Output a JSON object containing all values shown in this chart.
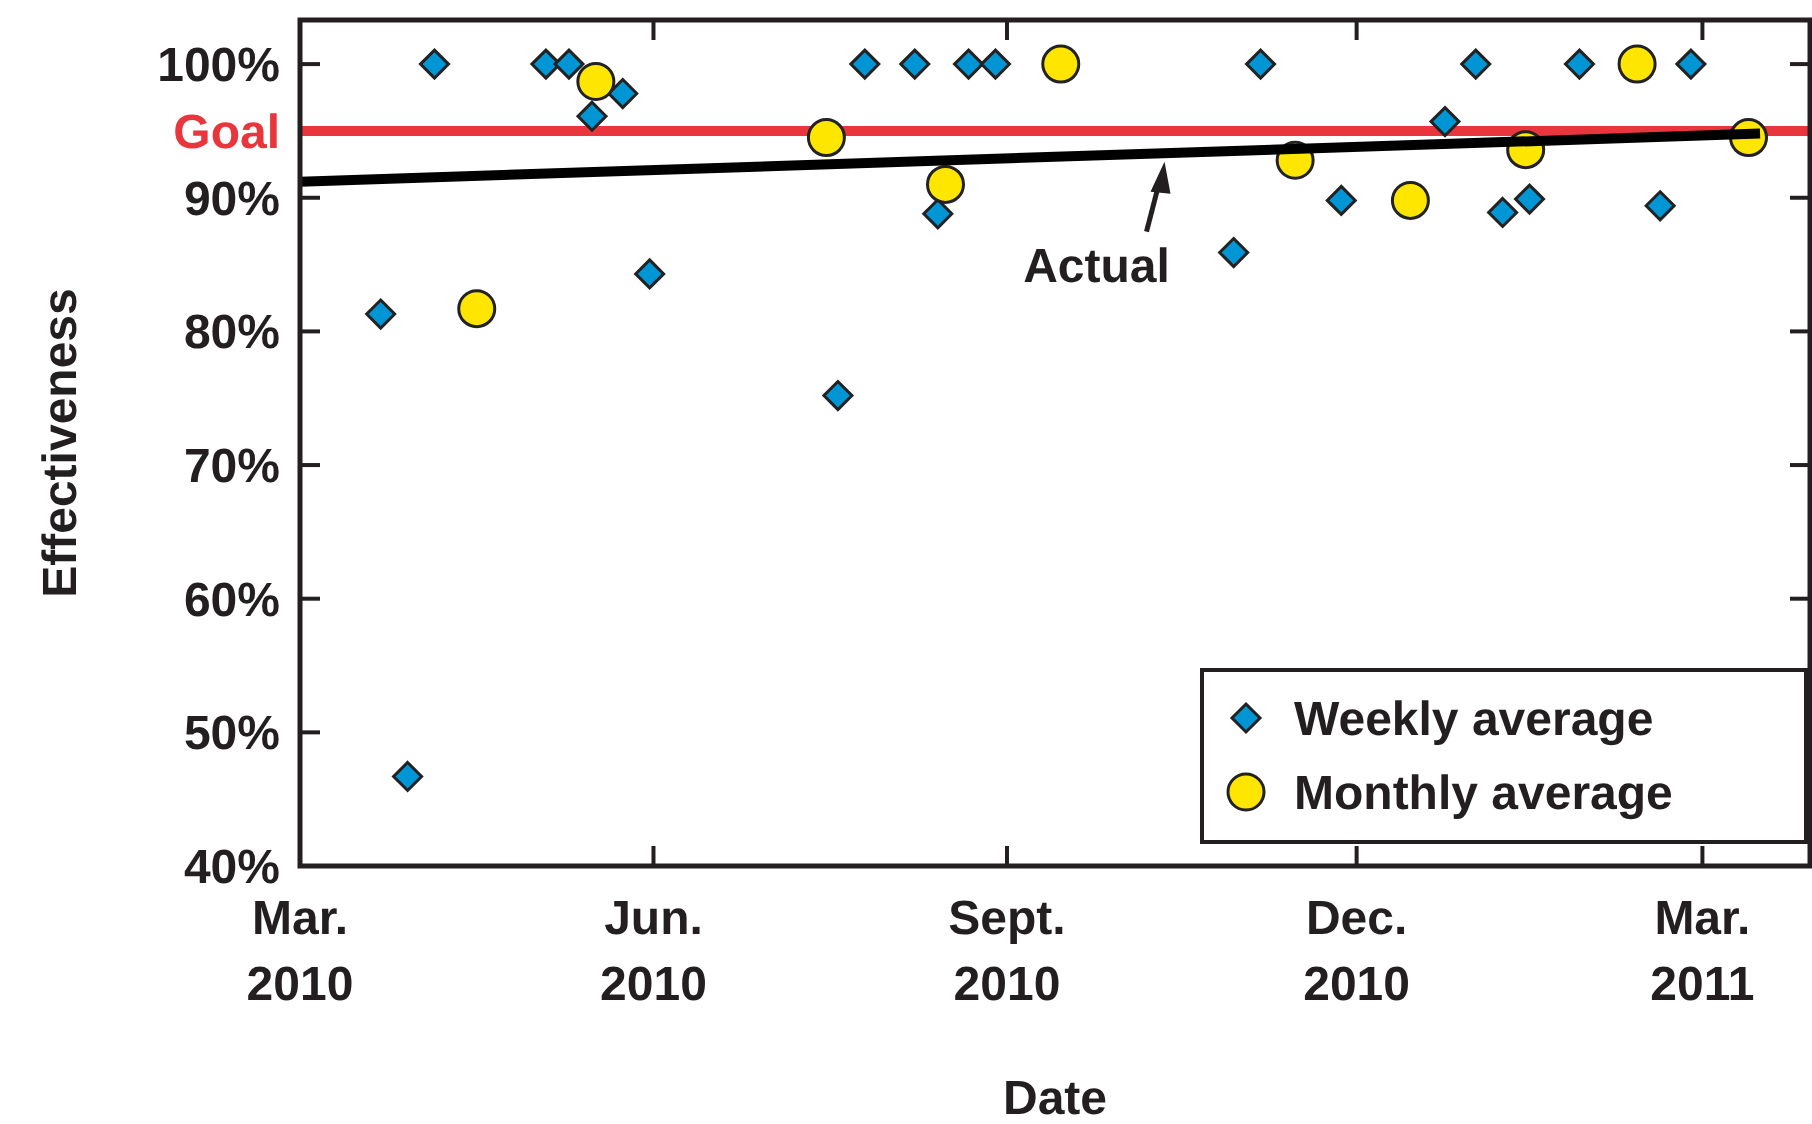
{
  "chart_data": {
    "type": "scatter",
    "xlabel": "Date",
    "ylabel": "Effectiveness",
    "xlim": [
      "2010-03-01",
      "2011-03-29"
    ],
    "ylim": [
      40,
      103.3
    ],
    "xticks": [
      {
        "value": "2010-03-01",
        "label": "Mar. 2010"
      },
      {
        "value": "2010-06-01",
        "label": "Jun. 2010"
      },
      {
        "value": "2010-09-01",
        "label": "Sept. 2010"
      },
      {
        "value": "2010-12-01",
        "label": "Dec. 2010"
      },
      {
        "value": "2011-03-01",
        "label": "Mar. 2011"
      }
    ],
    "yticks": [
      {
        "value": 40,
        "label": "40%"
      },
      {
        "value": 50,
        "label": "50%"
      },
      {
        "value": 60,
        "label": "60%"
      },
      {
        "value": 70,
        "label": "70%"
      },
      {
        "value": 80,
        "label": "80%"
      },
      {
        "value": 90,
        "label": "90%"
      },
      {
        "value": 100,
        "label": "100%"
      }
    ],
    "ref_lines": [
      {
        "axis": "y",
        "value": 95,
        "label": "Goal",
        "color": "#e8363c"
      }
    ],
    "annotations": [
      {
        "text": "Actual",
        "x": "2010-10-12",
        "y": 93
      }
    ],
    "legend": "bottom right",
    "grid": false,
    "series": [
      {
        "name": "Weekly average",
        "marker": "diamond",
        "color": "#0096d6",
        "x": [
          "2010-03-22",
          "2010-03-29",
          "2010-04-05",
          "2010-05-04",
          "2010-05-10",
          "2010-05-16",
          "2010-05-24",
          "2010-05-31",
          "2010-07-19",
          "2010-07-26",
          "2010-08-08",
          "2010-08-14",
          "2010-08-22",
          "2010-08-29",
          "2010-10-30",
          "2010-11-06",
          "2010-11-27",
          "2010-12-24",
          "2011-01-01",
          "2011-01-08",
          "2011-01-15",
          "2011-01-28",
          "2011-02-18",
          "2011-02-26"
        ],
        "values": [
          81.3,
          46.7,
          100,
          100,
          100,
          96.1,
          97.8,
          84.3,
          75.2,
          100,
          100,
          88.8,
          100,
          100,
          85.9,
          100,
          89.8,
          95.7,
          100,
          88.9,
          89.9,
          100,
          89.4,
          100
        ]
      },
      {
        "name": "Monthly average",
        "marker": "circle",
        "color": "#ffe600",
        "x": [
          "2010-04-16",
          "2010-05-17",
          "2010-07-16",
          "2010-08-16",
          "2010-09-15",
          "2010-11-15",
          "2010-12-15",
          "2011-01-14",
          "2011-02-12",
          "2011-03-13"
        ],
        "values": [
          81.7,
          98.7,
          94.5,
          91.0,
          100,
          92.8,
          89.8,
          93.6,
          100,
          94.5
        ]
      },
      {
        "type": "line",
        "color": "#000000",
        "x": [
          "2010-03-01",
          "2011-03-16"
        ],
        "values": [
          91.2,
          94.8
        ]
      }
    ]
  }
}
